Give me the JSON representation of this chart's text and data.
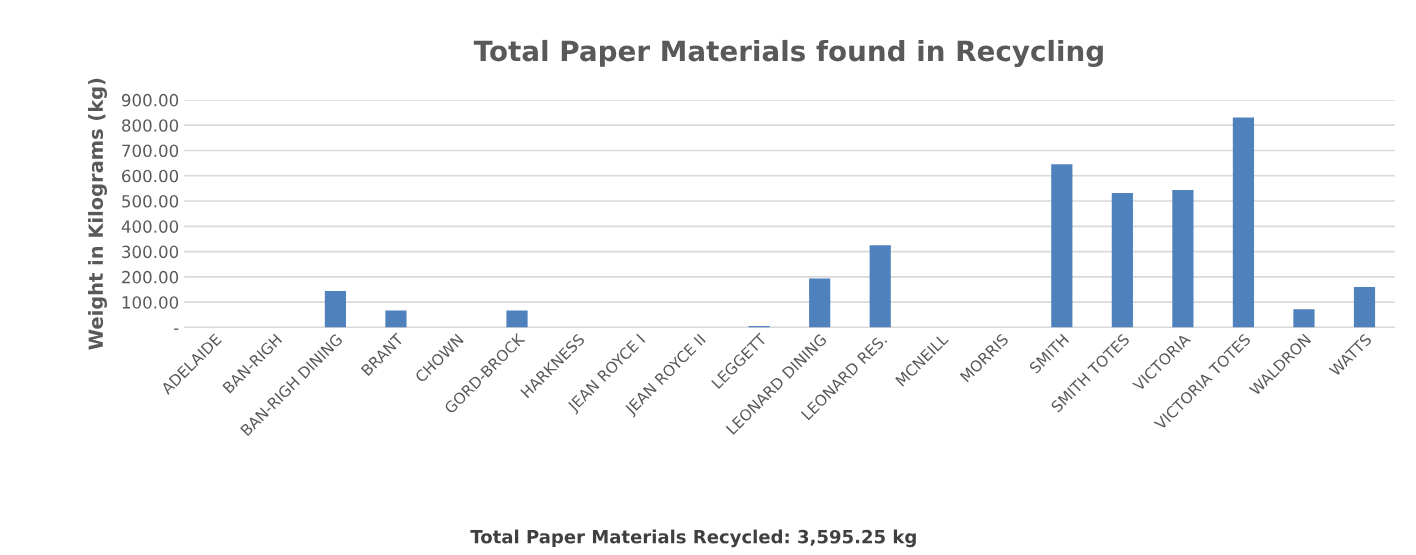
{
  "chart_data": {
    "type": "bar",
    "title": "Total Paper Materials found in Recycling",
    "ylabel": "Weight in Kilograms (kg)",
    "categories": [
      "ADELAIDE",
      "BAN-RIGH",
      "BAN-RIGH DINING",
      "BRANT",
      "CHOWN",
      "GORD-BROCK",
      "HARKNESS",
      "JEAN ROYCE I",
      "JEAN ROYCE II",
      "LEGGETT",
      "LEONARD DINING",
      "LEONARD RES.",
      "MCNEILL",
      "MORRIS",
      "SMITH",
      "SMITH TOTES",
      "VICTORIA",
      "VICTORIA TOTES",
      "WALDRON",
      "WATTS"
    ],
    "values": [
      0,
      0,
      144,
      67,
      0,
      67,
      0,
      0,
      0,
      6,
      194,
      325,
      0,
      0,
      645,
      532,
      544,
      830,
      72,
      160
    ],
    "color": "#4f81bd",
    "ylim": [
      0,
      900
    ],
    "yticks": [
      {
        "value": 0,
        "label": "-"
      },
      {
        "value": 100,
        "label": "100.00"
      },
      {
        "value": 200,
        "label": "200.00"
      },
      {
        "value": 300,
        "label": "300.00"
      },
      {
        "value": 400,
        "label": "400.00"
      },
      {
        "value": 500,
        "label": "500.00"
      },
      {
        "value": 600,
        "label": "600.00"
      },
      {
        "value": 700,
        "label": "700.00"
      },
      {
        "value": 800,
        "label": "800.00"
      },
      {
        "value": 900,
        "label": "900.00"
      }
    ],
    "grid": "y",
    "annotations": [
      "Total Paper Materials Recycled: 3,595.25 kg"
    ]
  }
}
